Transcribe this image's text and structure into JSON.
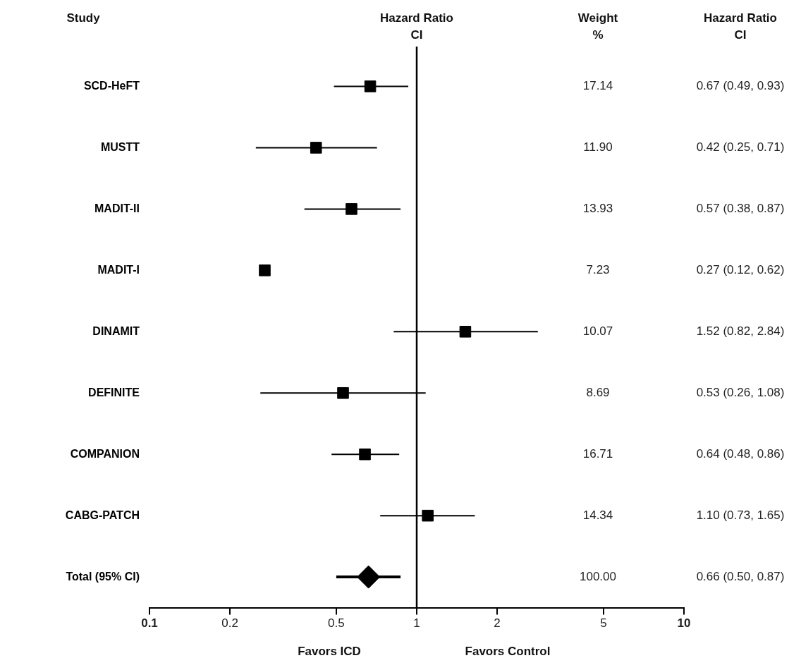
{
  "chart_data": {
    "type": "scatter",
    "orientation": "horizontal",
    "title": "Hazard Ratio CI",
    "ylabel": "Study",
    "categories": [
      "SCD-HeFT",
      "MUSTT",
      "MADIT-II",
      "MADIT-I",
      "DINAMIT",
      "DEFINITE",
      "COMPANION",
      "CABG-PATCH",
      "Total (95% CI)"
    ],
    "series": [
      {
        "color": "#000000",
        "marker": "square",
        "values": [
          0.67,
          0.42,
          0.57,
          0.27,
          1.52,
          0.53,
          0.64,
          1.1,
          null
        ],
        "errors": [
          [
            0.49,
            0.93
          ],
          [
            0.25,
            0.71
          ],
          [
            0.38,
            0.87
          ],
          null,
          [
            0.82,
            2.84
          ],
          [
            0.26,
            1.08
          ],
          [
            0.48,
            0.86
          ],
          [
            0.73,
            1.65
          ],
          null
        ],
        "value_labels": [
          "0.67 (0.49, 0.93)",
          "0.42 (0.25, 0.71)",
          "0.57 (0.38, 0.87)",
          "0.27 (0.12, 0.62)",
          "1.52 (0.82, 2.84)",
          "0.53 (0.26, 1.08)",
          "0.64 (0.48, 0.86)",
          "1.10 (0.73, 1.65)",
          null
        ]
      },
      {
        "color": "#000000",
        "marker": "diamond",
        "values": [
          null,
          null,
          null,
          null,
          null,
          null,
          null,
          null,
          0.66
        ],
        "errors": [
          null,
          null,
          null,
          null,
          null,
          null,
          null,
          null,
          [
            0.5,
            0.87
          ]
        ]
      }
    ],
    "log": "x",
    "xlim": [
      0.1,
      10
    ],
    "xticks": [
      0.1,
      0.2,
      0.5,
      1,
      2,
      5,
      10
    ],
    "grid": false,
    "legend": false,
    "ref_lines": [
      {
        "axis": "x",
        "value": 1
      }
    ],
    "annotations": [
      "Weight %",
      "Hazard Ratio CI",
      "Favors ICD",
      "Favors Control",
      "17.14",
      "11.90",
      "13.93",
      "7.23",
      "10.07",
      "8.69",
      "16.71",
      "14.34",
      "100.00",
      "0.66 (0.50, 0.87)"
    ]
  }
}
